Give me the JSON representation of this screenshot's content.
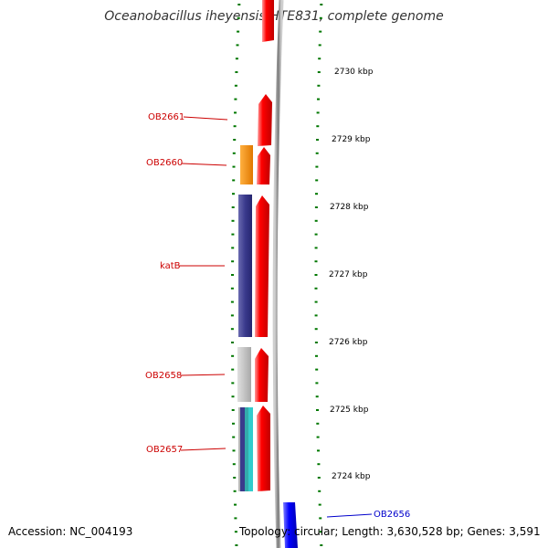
{
  "title": "Oceanobacillus iheyensis HTE831, complete genome",
  "accession": "Accession: NC_004193",
  "summary": "Topology: circular; Length: 3,630,528 bp; Genes: 3,591",
  "colors": {
    "forward_cds": "#ff0000",
    "reverse_cds": "#0000ff",
    "backbone": "#888888",
    "tick": "#007700",
    "label_red": "#cc0000",
    "label_blue": "#0000cc",
    "cog_orange": "#ff8c00",
    "cog_purple": "#3a3a8c",
    "cog_gray": "#b8b8b8",
    "cog_cyan": "#33cccc"
  },
  "scale_labels": [
    "2730 kbp",
    "2729 kbp",
    "2728 kbp",
    "2727 kbp",
    "2726 kbp",
    "2725 kbp",
    "2724 kbp"
  ],
  "gene_labels": [
    "OB2661",
    "OB2660",
    "katB",
    "OB2658",
    "OB2657",
    "OB2656"
  ]
}
